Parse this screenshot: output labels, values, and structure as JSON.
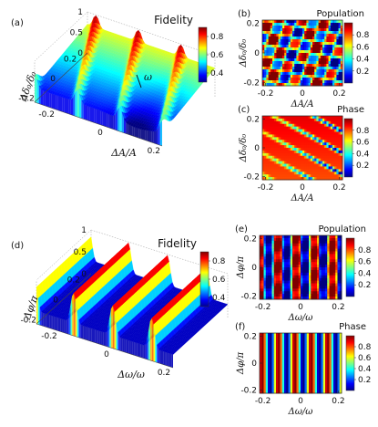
{
  "chart_data": [
    {
      "panel": "(a)",
      "type": "surface3d",
      "title": "Fidelity",
      "xlabel": "ΔA/A",
      "ylabel": "Δδ₀/δ₀",
      "zlabel": "",
      "x_ticks": [
        "-0.2",
        "0",
        "0.2"
      ],
      "y_ticks": [
        "-0.2",
        "0",
        "0.2"
      ],
      "z_ticks": [
        "0",
        "0.5",
        "1"
      ],
      "xlim": [
        -0.2,
        0.2
      ],
      "ylim": [
        -0.2,
        0.2
      ],
      "zlim": [
        0,
        1
      ],
      "annotation": "ω",
      "colorbar": {
        "ticks": [
          "0.4",
          "0.6",
          "0.8"
        ],
        "range": [
          0.3,
          0.9
        ]
      },
      "ridges": {
        "count": 6,
        "peak": 0.95,
        "trough": 0.3
      }
    },
    {
      "panel": "(b)",
      "type": "heatmap",
      "title": "Population",
      "xlabel": "ΔA/A",
      "ylabel": "Δδ₀/δ₀",
      "x_ticks": [
        "-0.2",
        "0",
        "0.2"
      ],
      "y_ticks": [
        "-0.2",
        "0",
        "0.2"
      ],
      "colorbar": {
        "ticks": [
          "0.2",
          "0.4",
          "0.6",
          "0.8"
        ],
        "range": [
          0,
          1
        ]
      }
    },
    {
      "panel": "(c)",
      "type": "heatmap",
      "title": "Phase",
      "xlabel": "ΔA/A",
      "ylabel": "Δδ₀/δ₀",
      "x_ticks": [
        "-0.2",
        "0",
        "0.2"
      ],
      "y_ticks": [
        "-0.2",
        "0",
        "0.2"
      ],
      "colorbar": {
        "ticks": [
          "0.2",
          "0.4",
          "0.6",
          "0.8"
        ],
        "range": [
          0,
          1
        ]
      }
    },
    {
      "panel": "(d)",
      "type": "surface3d",
      "title": "Fidelity",
      "xlabel": "Δω/ω",
      "ylabel": "Δφ/π",
      "x_ticks": [
        "-0.2",
        "0",
        "0.2"
      ],
      "y_ticks": [
        "-0.2",
        "0",
        "0.2"
      ],
      "z_ticks": [
        "0",
        "0.5",
        "1"
      ],
      "xlim": [
        -0.2,
        0.2
      ],
      "ylim": [
        -0.2,
        0.2
      ],
      "zlim": [
        0,
        1
      ],
      "colorbar": {
        "ticks": [
          "0.4",
          "0.6",
          "0.8"
        ],
        "range": [
          0.3,
          0.9
        ]
      },
      "ridges": {
        "count": 7,
        "peak": 0.95,
        "trough": 0.3
      }
    },
    {
      "panel": "(e)",
      "type": "heatmap",
      "title": "Population",
      "xlabel": "Δω/ω",
      "ylabel": "Δφ/π",
      "x_ticks": [
        "-0.2",
        "0",
        "0.2"
      ],
      "y_ticks": [
        "-0.2",
        "0",
        "0.2"
      ],
      "colorbar": {
        "ticks": [
          "0.2",
          "0.4",
          "0.6",
          "0.8"
        ],
        "range": [
          0,
          1
        ]
      }
    },
    {
      "panel": "(f)",
      "type": "heatmap",
      "title": "Phase",
      "xlabel": "Δω/ω",
      "ylabel": "Δφ/π",
      "x_ticks": [
        "-0.2",
        "0",
        "0.2"
      ],
      "y_ticks": [
        "-0.2",
        "0",
        "0.2"
      ],
      "colorbar": {
        "ticks": [
          "0.2",
          "0.4",
          "0.6",
          "0.8"
        ],
        "range": [
          0,
          1
        ]
      }
    }
  ],
  "colormap": "jet"
}
